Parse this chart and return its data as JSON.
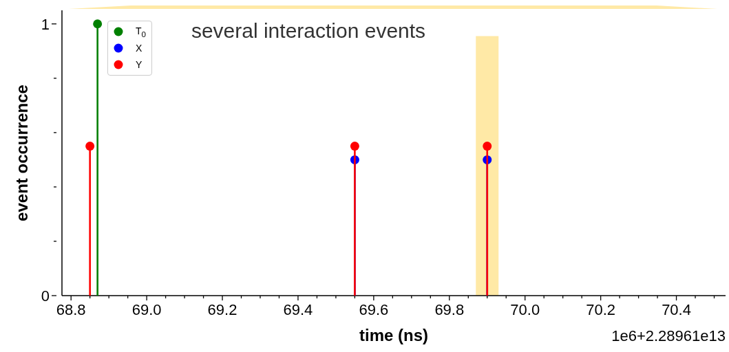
{
  "chart_data": {
    "type": "lollipop",
    "title": "several interaction events",
    "xlabel": "time (ns)",
    "ylabel": "event occurrence",
    "annotations": [
      "1e6+2.28961e13"
    ],
    "xlim": [
      68.776,
      70.53
    ],
    "xticks": [
      {
        "value": 68.8,
        "label": "68.8"
      },
      {
        "value": 68.85,
        "label": null
      },
      {
        "value": 68.9,
        "label": null
      },
      {
        "value": 68.95,
        "label": null
      },
      {
        "value": 69.0,
        "label": "69.0"
      },
      {
        "value": 69.05,
        "label": null
      },
      {
        "value": 69.1,
        "label": null
      },
      {
        "value": 69.15,
        "label": null
      },
      {
        "value": 69.2,
        "label": "69.2"
      },
      {
        "value": 69.25,
        "label": null
      },
      {
        "value": 69.3,
        "label": null
      },
      {
        "value": 69.35,
        "label": null
      },
      {
        "value": 69.4,
        "label": "69.4"
      },
      {
        "value": 69.45,
        "label": null
      },
      {
        "value": 69.5,
        "label": null
      },
      {
        "value": 69.55,
        "label": null
      },
      {
        "value": 69.6,
        "label": "69.6"
      },
      {
        "value": 69.65,
        "label": null
      },
      {
        "value": 69.7,
        "label": null
      },
      {
        "value": 69.75,
        "label": null
      },
      {
        "value": 69.8,
        "label": "69.8"
      },
      {
        "value": 69.85,
        "label": null
      },
      {
        "value": 69.9,
        "label": null
      },
      {
        "value": 69.95,
        "label": null
      },
      {
        "value": 70.0,
        "label": "70.0"
      },
      {
        "value": 70.05,
        "label": null
      },
      {
        "value": 70.1,
        "label": null
      },
      {
        "value": 70.15,
        "label": null
      },
      {
        "value": 70.2,
        "label": "70.2"
      },
      {
        "value": 70.25,
        "label": null
      },
      {
        "value": 70.3,
        "label": null
      },
      {
        "value": 70.35,
        "label": null
      },
      {
        "value": 70.4,
        "label": "70.4"
      },
      {
        "value": 70.45,
        "label": null
      },
      {
        "value": 70.5,
        "label": null
      }
    ],
    "ylim": [
      0,
      1.05
    ],
    "yticks": [
      0,
      {
        "value": 0.2,
        "label": null
      },
      {
        "value": 0.4,
        "label": null
      },
      {
        "value": 0.6,
        "label": null
      },
      {
        "value": 0.8,
        "label": null
      },
      1
    ],
    "bands": [
      {
        "axis": "x",
        "from": 69.87,
        "to": 69.93,
        "color": "#ffe9a6"
      }
    ],
    "legend": "top left",
    "marker": "circle",
    "series": [
      {
        "name": "T$_{0}$",
        "color": "#008000",
        "x": [
          68.87
        ],
        "values": [
          1
        ]
      },
      {
        "name": "X",
        "color": "#0000ff",
        "x": [
          69.55,
          69.9
        ],
        "values": [
          0.5,
          0.5
        ]
      },
      {
        "name": "Y",
        "color": "#ff0000",
        "x": [
          68.85,
          69.55,
          69.9
        ],
        "values": [
          0.55,
          0.55,
          0.55
        ]
      }
    ]
  }
}
